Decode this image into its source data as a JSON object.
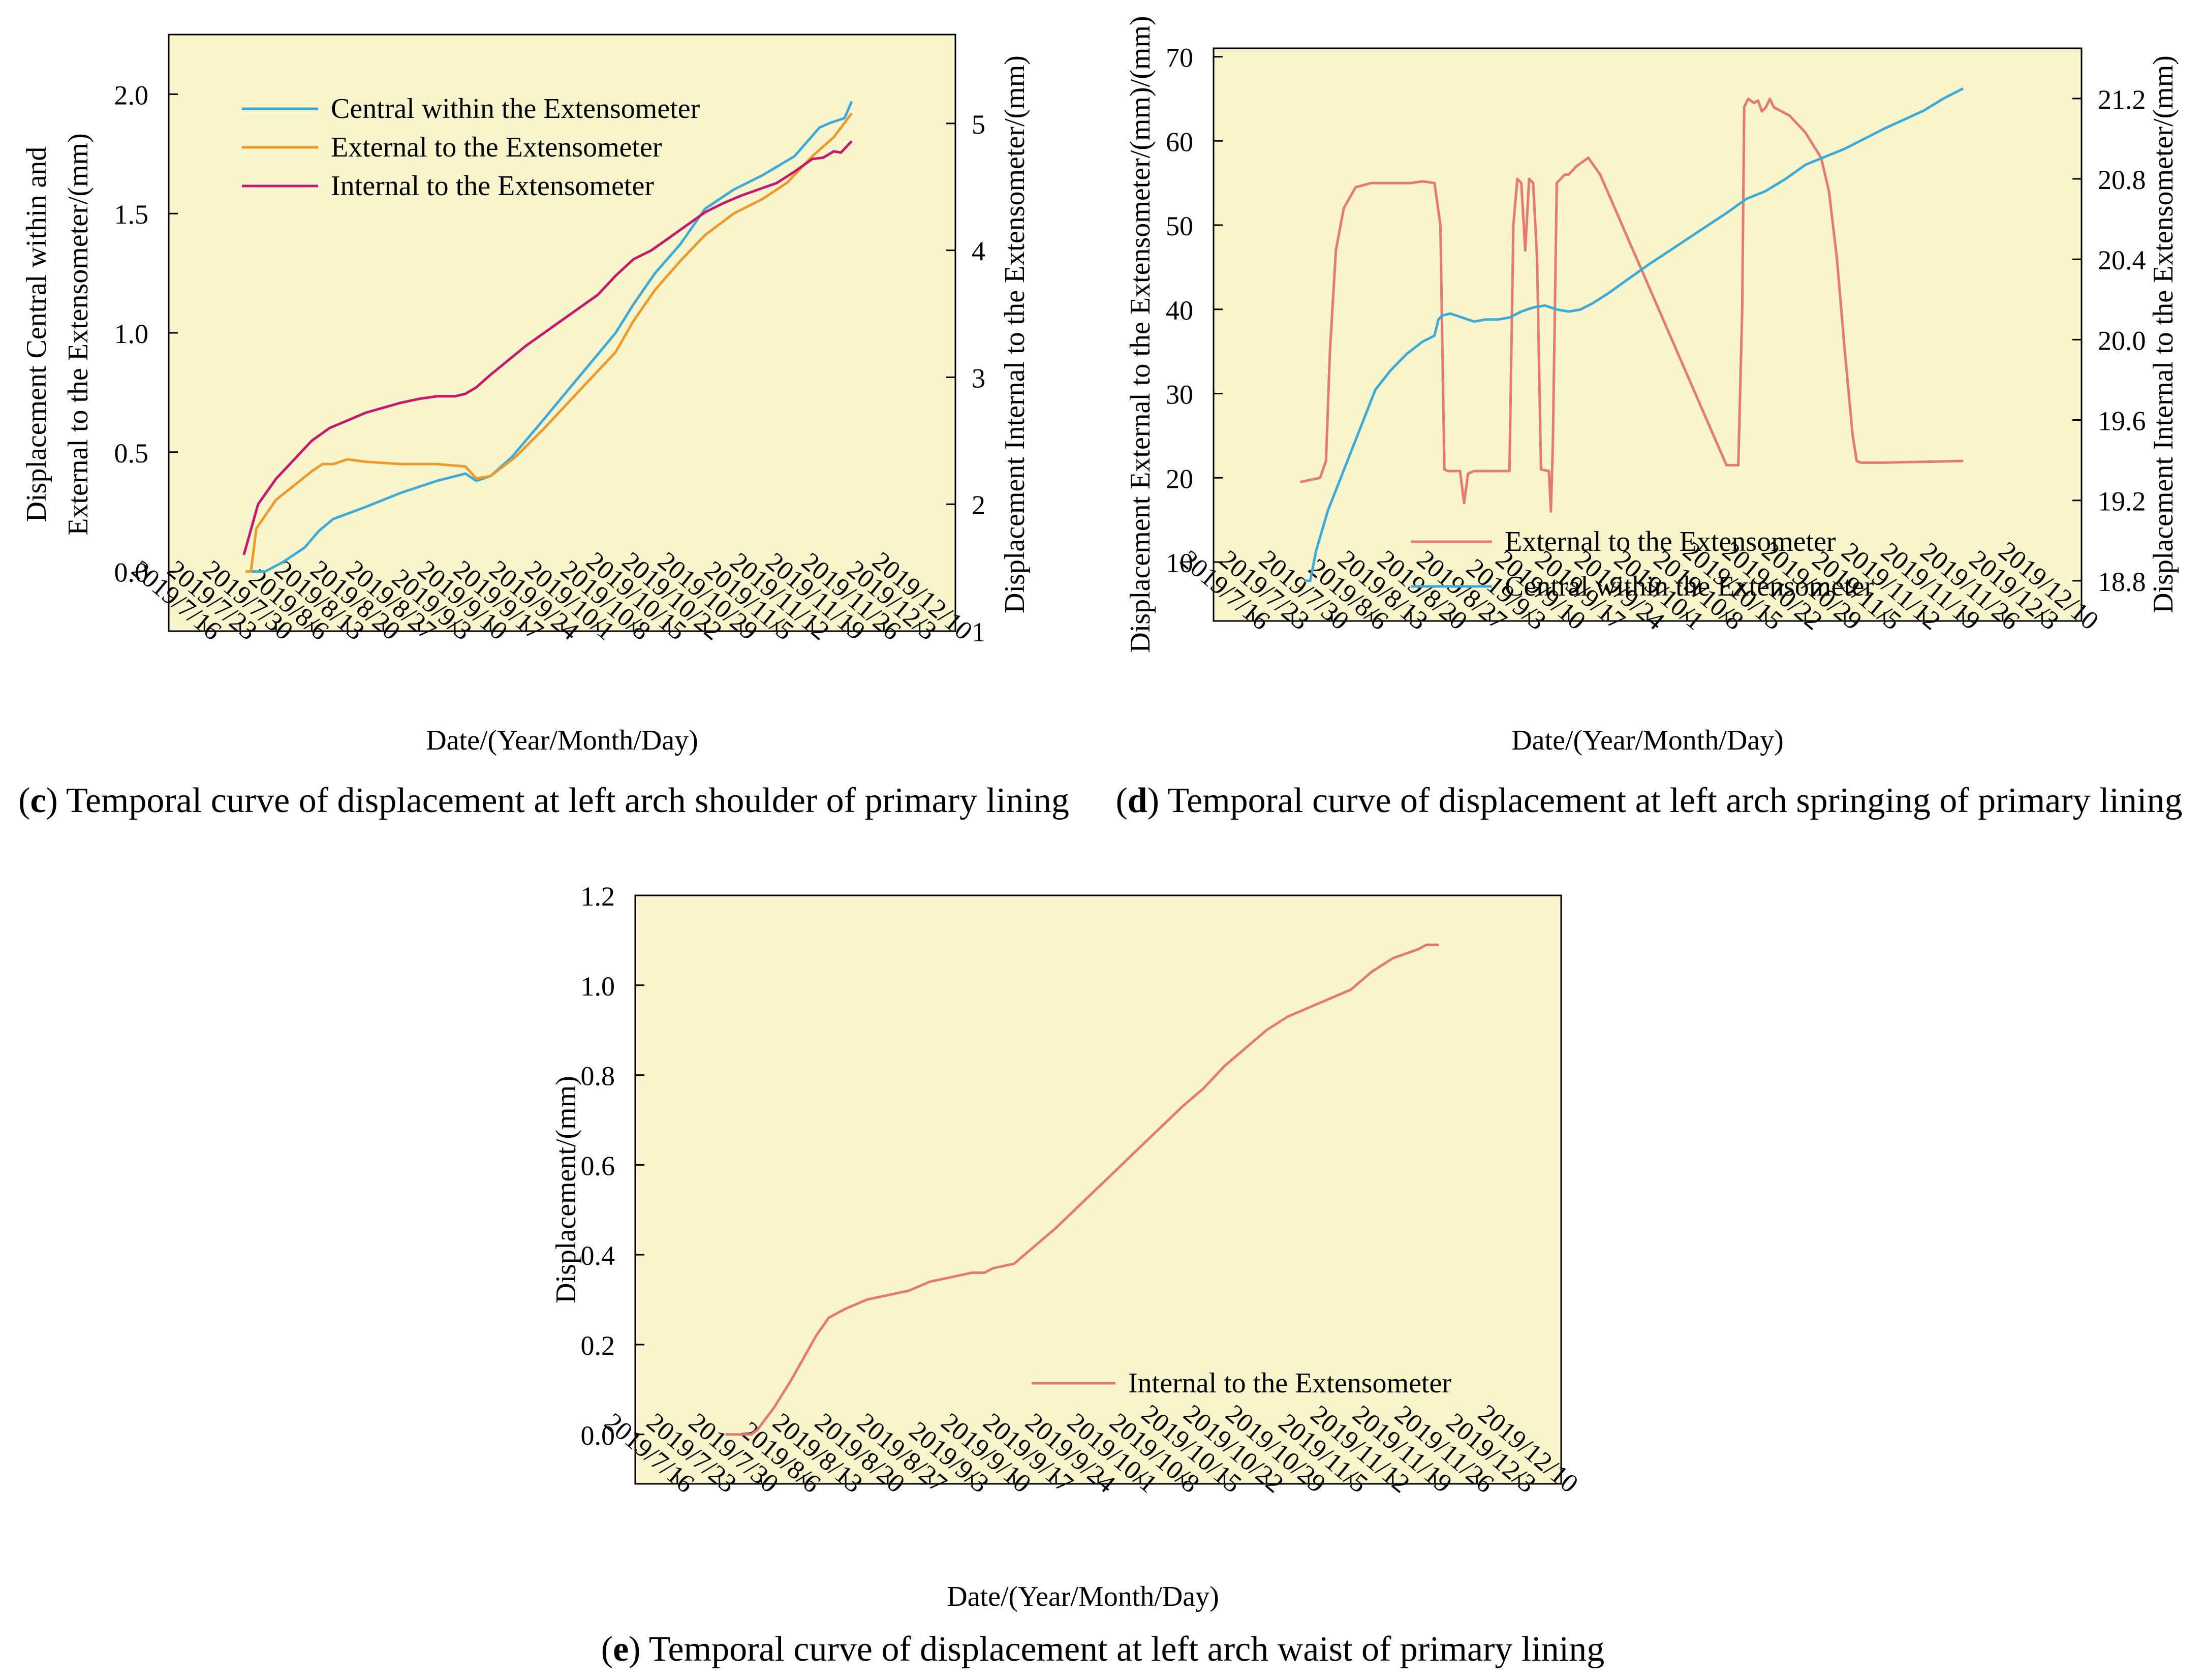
{
  "figure": {
    "panels": [
      {
        "letter": "c",
        "caption": "Temporal curve of displacement at left arch shoulder of primary lining"
      },
      {
        "letter": "d",
        "caption": "Temporal curve of displacement at left arch springing of primary lining"
      },
      {
        "letter": "e",
        "caption": "Temporal curve of displacement at left arch waist of primary lining"
      }
    ]
  },
  "colors": {
    "plot_bg": "#f8f4cc",
    "blue": "#3daad8",
    "orange": "#ee9a2a",
    "magenta": "#c8186e",
    "salmon": "#e67a72"
  },
  "chart_data": [
    {
      "type": "line",
      "id": "c",
      "xlabel": "Date/(Year/Month/Day)",
      "ylabel": [
        "Displacement Central within and",
        "External to the Extensometer/(mm)"
      ],
      "y2label": "Displacement Internal to the Extensometer/(mm)",
      "categories": [
        "2019/7/16",
        "2019/7/23",
        "2019/7/30",
        "2019/8/6",
        "2019/8/13",
        "2019/8/20",
        "2019/8/27",
        "2019/9/3",
        "2019/9/10",
        "2019/9/17",
        "2019/9/24",
        "2019/10/1",
        "2019/10/8",
        "2019/10/15",
        "2019/10/22",
        "2019/10/29",
        "2019/11/5",
        "2019/11/12",
        "2019/11/19",
        "2019/11/26",
        "2019/12/3",
        "2019/12/10"
      ],
      "x_range": [
        -1,
        21
      ],
      "ylim": [
        -0.25,
        2.25
      ],
      "yticks": [
        0.0,
        0.5,
        1.0,
        1.5,
        2.0
      ],
      "ytick_labels": [
        "0.0",
        "0.5",
        "1.0",
        "1.5",
        "2.0"
      ],
      "y2lim": [
        1,
        5.7
      ],
      "y2ticks": [
        1,
        2,
        3,
        4,
        5
      ],
      "legend_position": "top-left",
      "series": [
        {
          "name": "Central within the Extensometer",
          "axis": "left",
          "color": "#3daad8",
          "x": [
            1.15,
            1.7,
            2.2,
            2.8,
            3.2,
            3.6,
            4.5,
            5.5,
            6.5,
            7.3,
            7.6,
            8.0,
            8.6,
            9.5,
            10.5,
            11.5,
            12.0,
            12.6,
            13.3,
            14.0,
            14.8,
            15.6,
            16.5,
            17.2,
            17.5,
            17.9,
            18.1
          ],
          "values": [
            0.0,
            0.0,
            0.04,
            0.1,
            0.17,
            0.22,
            0.27,
            0.33,
            0.38,
            0.41,
            0.38,
            0.4,
            0.48,
            0.64,
            0.82,
            1.0,
            1.12,
            1.25,
            1.37,
            1.52,
            1.6,
            1.66,
            1.74,
            1.86,
            1.88,
            1.9,
            1.97
          ]
        },
        {
          "name": "External to the Extensometer",
          "axis": "left",
          "color": "#ee9a2a",
          "x": [
            1.15,
            1.3,
            1.45,
            2.0,
            3.0,
            3.3,
            3.6,
            4.0,
            4.5,
            5.5,
            6.5,
            7.3,
            7.6,
            8.0,
            8.7,
            9.5,
            10.5,
            11.5,
            12.0,
            12.6,
            13.3,
            14.0,
            14.8,
            15.6,
            16.3,
            17.0,
            17.6,
            18.1
          ],
          "values": [
            0.0,
            0.0,
            0.18,
            0.3,
            0.42,
            0.45,
            0.45,
            0.47,
            0.46,
            0.45,
            0.45,
            0.44,
            0.39,
            0.4,
            0.48,
            0.6,
            0.76,
            0.92,
            1.05,
            1.18,
            1.3,
            1.41,
            1.5,
            1.56,
            1.63,
            1.74,
            1.82,
            1.92
          ]
        },
        {
          "name": "Internal to the Extensometer",
          "axis": "right",
          "color": "#c8186e",
          "x": [
            1.1,
            1.25,
            1.5,
            2.0,
            2.5,
            3.0,
            3.5,
            4.0,
            4.5,
            5.0,
            5.5,
            6.0,
            6.5,
            7.0,
            7.3,
            7.6,
            8.0,
            9.0,
            10.0,
            11.0,
            11.5,
            12.0,
            12.5,
            13.0,
            13.5,
            14.0,
            14.5,
            15.0,
            15.5,
            16.0,
            16.5,
            17.0,
            17.3,
            17.6,
            17.8,
            18.1
          ],
          "values": [
            1.6,
            1.75,
            2.0,
            2.2,
            2.35,
            2.5,
            2.6,
            2.66,
            2.72,
            2.76,
            2.8,
            2.83,
            2.85,
            2.85,
            2.87,
            2.92,
            3.02,
            3.25,
            3.45,
            3.65,
            3.8,
            3.93,
            4.0,
            4.1,
            4.2,
            4.3,
            4.37,
            4.43,
            4.48,
            4.53,
            4.62,
            4.72,
            4.73,
            4.78,
            4.77,
            4.86
          ]
        }
      ]
    },
    {
      "type": "line",
      "id": "d",
      "xlabel": "Date/(Year/Month/Day)",
      "ylabel": "Displacement External to the Extensometer/(mm)/(mm)",
      "y2label": "Displacement Internal to the Extensometer/(mm)",
      "categories": [
        "2019/7/16",
        "2019/7/23",
        "2019/7/30",
        "2019/8/6",
        "2019/8/13",
        "2019/8/20",
        "2019/8/27",
        "2019/9/3",
        "2019/9/10",
        "2019/9/17",
        "2019/9/24",
        "2019/10/1",
        "2019/10/8",
        "2019/10/15",
        "2019/10/22",
        "2019/10/29",
        "2019/11/5",
        "2019/11/12",
        "2019/11/19",
        "2019/11/26",
        "2019/12/3",
        "2019/12/10"
      ],
      "x_range": [
        -1,
        21
      ],
      "ylim": [
        3,
        71
      ],
      "yticks": [
        10,
        20,
        30,
        40,
        50,
        60,
        70
      ],
      "ytick_labels": [
        "10",
        "20",
        "30",
        "40",
        "50",
        "60",
        "70"
      ],
      "y2lim": [
        18.6,
        21.45
      ],
      "y2ticks": [
        18.8,
        19.2,
        19.6,
        20.0,
        20.4,
        20.8,
        21.2
      ],
      "y2tick_labels": [
        "18.8",
        "19.2",
        "19.6",
        "20.0",
        "20.4",
        "20.8",
        "21.2"
      ],
      "legend_position": "bottom-center",
      "series": [
        {
          "name": "External to the Extensometer",
          "axis": "left",
          "color": "#e67a72",
          "x": [
            1.2,
            1.7,
            1.85,
            1.95,
            2.1,
            2.3,
            2.6,
            3.0,
            3.5,
            4.0,
            4.3,
            4.6,
            4.75,
            4.85,
            4.95,
            5.25,
            5.35,
            5.45,
            5.6,
            6.2,
            6.5,
            6.6,
            6.7,
            6.8,
            6.9,
            7.0,
            7.1,
            7.2,
            7.3,
            7.5,
            7.55,
            7.6,
            7.7,
            7.8,
            7.9,
            8.0,
            8.2,
            8.5,
            8.8,
            12.0,
            12.3,
            12.4,
            12.45,
            12.55,
            12.7,
            12.8,
            12.9,
            13.0,
            13.1,
            13.2,
            13.4,
            13.6,
            14.0,
            14.4,
            14.6,
            14.8,
            15.0,
            15.2,
            15.3,
            15.4,
            15.5,
            15.6,
            16.0,
            18.0
          ],
          "values": [
            19.5,
            20.0,
            22.0,
            35.0,
            47.0,
            52.0,
            54.5,
            55.0,
            55.0,
            55.0,
            55.2,
            55.0,
            50.0,
            21.0,
            20.8,
            20.8,
            17.0,
            20.5,
            20.8,
            20.8,
            20.8,
            50.0,
            55.5,
            55.0,
            47.0,
            55.5,
            55.0,
            46.0,
            21.0,
            20.8,
            16.0,
            24.0,
            55.0,
            55.5,
            56.0,
            56.0,
            57.0,
            58.0,
            56.0,
            21.5,
            21.5,
            40.0,
            64.0,
            65.0,
            64.5,
            64.8,
            63.5,
            64.0,
            65.0,
            64.0,
            63.5,
            63.0,
            61.0,
            58.0,
            54.0,
            46.0,
            35.0,
            25.0,
            22.0,
            21.8,
            21.8,
            21.8,
            21.8,
            22.0
          ]
        },
        {
          "name": "Central within the Extensometer",
          "axis": "right",
          "color": "#3daad8",
          "x": [
            1.3,
            1.45,
            1.6,
            1.9,
            2.3,
            2.7,
            3.1,
            3.5,
            3.9,
            4.3,
            4.6,
            4.7,
            4.8,
            5.0,
            5.3,
            5.6,
            5.9,
            6.2,
            6.5,
            6.8,
            7.1,
            7.4,
            7.7,
            8.0,
            8.3,
            8.6,
            9.0,
            10.0,
            11.0,
            12.0,
            12.5,
            13.0,
            13.5,
            14.0,
            15.0,
            16.0,
            17.0,
            17.5,
            18.0
          ],
          "values": [
            18.8,
            18.8,
            18.95,
            19.15,
            19.35,
            19.55,
            19.75,
            19.85,
            19.93,
            19.99,
            20.02,
            20.1,
            20.12,
            20.13,
            20.11,
            20.09,
            20.1,
            20.1,
            20.11,
            20.14,
            20.16,
            20.17,
            20.15,
            20.14,
            20.15,
            20.18,
            20.23,
            20.37,
            20.5,
            20.63,
            20.7,
            20.74,
            20.8,
            20.87,
            20.95,
            21.05,
            21.14,
            21.2,
            21.25
          ]
        }
      ]
    },
    {
      "type": "line",
      "id": "e",
      "xlabel": "Date/(Year/Month/Day)",
      "ylabel": "Displacement/(mm)",
      "categories": [
        "2019/7/16",
        "2019/7/23",
        "2019/7/30",
        "2019/8/6",
        "2019/8/13",
        "2019/8/20",
        "2019/8/27",
        "2019/9/3",
        "2019/9/10",
        "2019/9/17",
        "2019/9/24",
        "2019/10/1",
        "2019/10/8",
        "2019/10/15",
        "2019/10/22",
        "2019/10/29",
        "2019/11/5",
        "2019/11/12",
        "2019/11/19",
        "2019/11/26",
        "2019/12/3",
        "2019/12/10"
      ],
      "x_range": [
        -1,
        21
      ],
      "ylim": [
        -0.11,
        1.2
      ],
      "yticks": [
        0.0,
        0.2,
        0.4,
        0.6,
        0.8,
        1.0,
        1.2
      ],
      "ytick_labels": [
        "0.0",
        "0.2",
        "0.4",
        "0.6",
        "0.8",
        "1.0",
        "1.2"
      ],
      "legend_position": "bottom-right",
      "series": [
        {
          "name": "Internal to the Extensometer",
          "color": "#e67a72",
          "x": [
            1.15,
            1.75,
            1.9,
            2.3,
            2.7,
            3.0,
            3.3,
            3.6,
            4.0,
            4.5,
            5.0,
            5.5,
            6.0,
            6.5,
            7.0,
            7.3,
            7.5,
            8.0,
            9.0,
            10.0,
            11.0,
            12.0,
            12.5,
            13.0,
            13.5,
            14.0,
            14.5,
            15.0,
            15.5,
            16.0,
            16.5,
            17.0,
            17.3,
            17.6,
            17.8,
            18.1
          ],
          "values": [
            0.0,
            0.0,
            0.01,
            0.06,
            0.12,
            0.17,
            0.22,
            0.26,
            0.28,
            0.3,
            0.31,
            0.32,
            0.34,
            0.35,
            0.36,
            0.36,
            0.37,
            0.38,
            0.46,
            0.55,
            0.64,
            0.73,
            0.77,
            0.82,
            0.86,
            0.9,
            0.93,
            0.95,
            0.97,
            0.99,
            1.03,
            1.06,
            1.07,
            1.08,
            1.09,
            1.09
          ]
        }
      ]
    }
  ]
}
